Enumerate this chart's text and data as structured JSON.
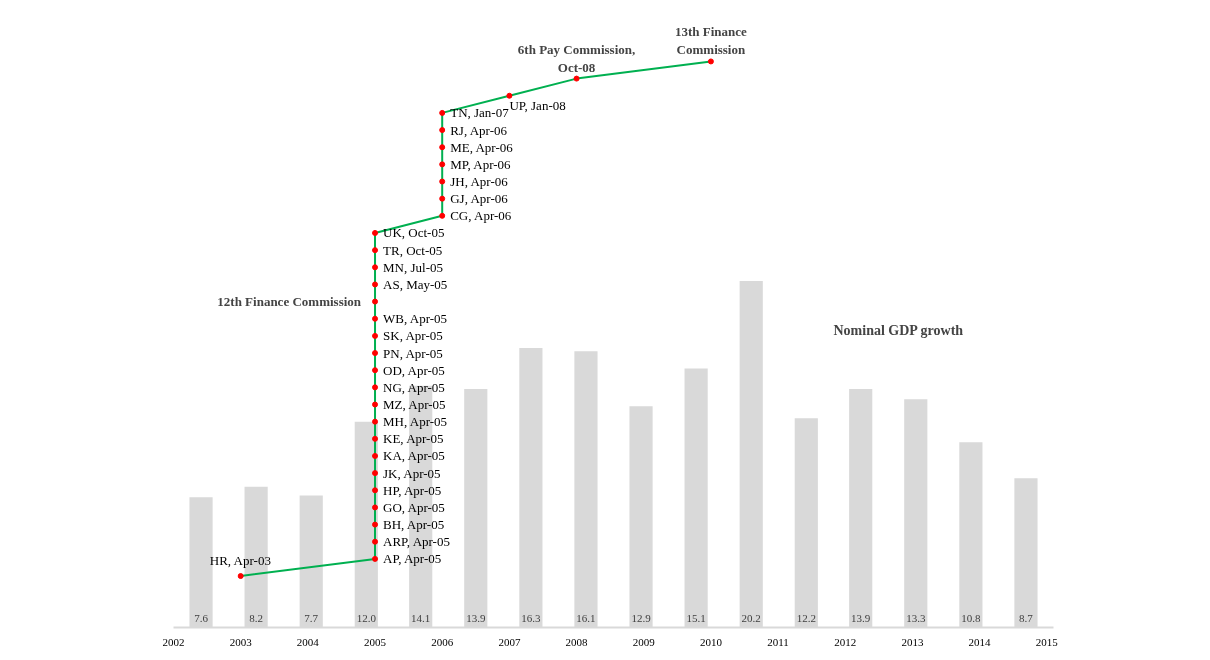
{
  "chart_data": {
    "type": "bar",
    "xlim": [
      2002,
      2015.1
    ],
    "xticks": [
      2002,
      2003,
      2004,
      2005,
      2006,
      2007,
      2008,
      2009,
      2010,
      2011,
      2012,
      2013,
      2014,
      2015
    ],
    "tick_labels": "x",
    "grid": false,
    "series": [
      {
        "color": "#d9d9d9",
        "value_labels": [
          "7.6",
          "8.2",
          "7.7",
          "12.0",
          "14.1",
          "13.9",
          "16.3",
          "16.1",
          "12.9",
          "15.1",
          "20.2",
          "12.2",
          "13.9",
          "13.3",
          "10.8",
          "8.7"
        ],
        "x": [
          2002.41,
          2003.23,
          2004.05,
          2004.87,
          2005.68,
          2006.5,
          2007.32,
          2008.14,
          2008.96,
          2009.78,
          2010.6,
          2011.42,
          2012.23,
          2013.05,
          2013.87,
          2014.69
        ],
        "values": [
          7.6,
          8.2,
          7.7,
          12.0,
          14.1,
          13.9,
          16.3,
          16.1,
          12.9,
          15.1,
          20.2,
          12.2,
          13.9,
          13.3,
          10.8,
          8.7
        ]
      },
      {
        "type": "line",
        "color": "#00b050",
        "marker": "circle",
        "line_style": "solid",
        "x": [
          2003,
          2005,
          2005,
          2005,
          2005,
          2005,
          2005,
          2005,
          2005,
          2005,
          2005,
          2005,
          2005,
          2005,
          2005,
          2005,
          2005,
          2005,
          2005,
          2005,
          2005,
          2006,
          2006,
          2006,
          2006,
          2006,
          2006,
          2006,
          2007,
          2008,
          2010
        ],
        "values": [
          3,
          4,
          5,
          6,
          7,
          8,
          9,
          10,
          11,
          12,
          13,
          14,
          15,
          16,
          17,
          18,
          19,
          20,
          21,
          22,
          23,
          24,
          25,
          26,
          27,
          28,
          29,
          30,
          31,
          32,
          33
        ],
        "colors": [
          "#ff0000",
          "#ff0000",
          "#ff0000",
          "#ff0000",
          "#ff0000",
          "#ff0000",
          "#ff0000",
          "#ff0000",
          "#ff0000",
          "#ff0000",
          "#ff0000",
          "#ff0000",
          "#ff0000",
          "#ff0000",
          "#ff0000",
          "#ff0000",
          "#ff0000",
          "#ff0000",
          "#ff0000",
          "#ff0000",
          "#ff0000",
          "#ff0000",
          "#ff0000",
          "#ff0000",
          "#ff0000",
          "#ff0000",
          "#ff0000",
          "#ff0000",
          "#ff0000",
          "#ff0000",
          "#ff0000"
        ],
        "value_labels": [
          "HR, Apr-03",
          "AP, Apr-05",
          "ARP, Apr-05",
          "BH, Apr-05",
          "GO, Apr-05",
          "HP, Apr-05",
          "JK, Apr-05",
          "KA, Apr-05",
          "KE, Apr-05",
          "MH, Apr-05",
          "MZ, Apr-05",
          "NG, Apr-05",
          "OD, Apr-05",
          "PN, Apr-05",
          "SK, Apr-05",
          "WB, Apr-05",
          null,
          "AS, May-05",
          "MN, Jul-05",
          "TR, Oct-05",
          "UK, Oct-05",
          "CG, Apr-06",
          "GJ, Apr-06",
          "JH, Apr-06",
          "MP, Apr-06",
          "ME, Apr-06",
          "RJ, Apr-06",
          "TN, Jan-07",
          "UP, Jan-08",
          null,
          null
        ]
      }
    ],
    "annotations": [
      {
        "text": "12th Finance Commission",
        "x": 2005,
        "y": 19
      },
      {
        "text": "6th Pay Commission,\nOct-08",
        "x": 2008,
        "y": 32
      },
      {
        "text": "13th Finance\nCommission",
        "x": 2010,
        "y": 33
      },
      "Nominal GDP growth"
    ]
  }
}
